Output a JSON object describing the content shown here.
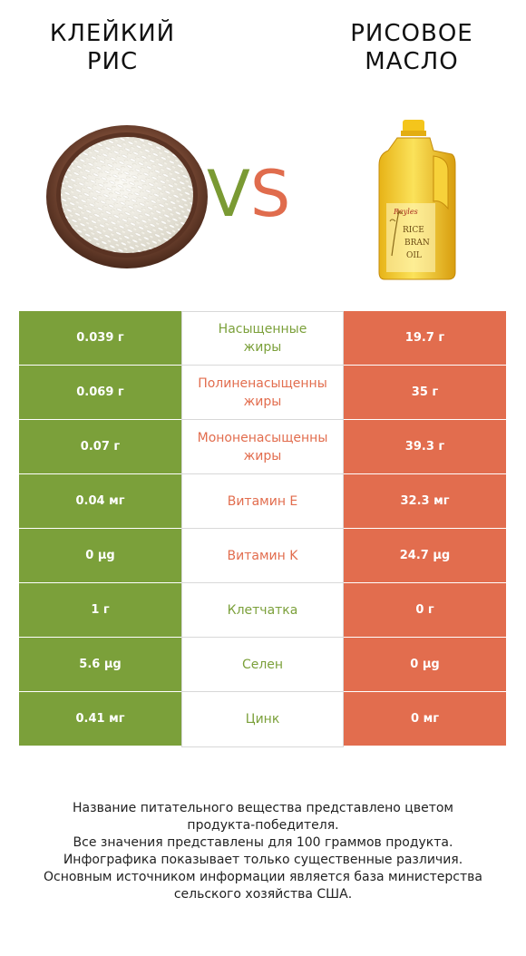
{
  "titles": {
    "left": "КЛЕЙКИЙ\nРИС",
    "right": "РИСОВОЕ\nМАСЛО"
  },
  "vs": {
    "v": "V",
    "s": "S"
  },
  "colors": {
    "green": "#7ba03a",
    "orange": "#e26d4e"
  },
  "bottle_label": [
    "RICE",
    "BRAN",
    "OIL"
  ],
  "bottle_brand": "Reyles",
  "rows": [
    {
      "left": "0.039 г",
      "nutrient": "Насыщенные\nжиры",
      "right": "19.7 г",
      "winner": "green"
    },
    {
      "left": "0.069 г",
      "nutrient": "Полиненасыщенны\nжиры",
      "right": "35 г",
      "winner": "orange"
    },
    {
      "left": "0.07 г",
      "nutrient": "Мононенасыщенны\nжиры",
      "right": "39.3 г",
      "winner": "orange"
    },
    {
      "left": "0.04 мг",
      "nutrient": "Витамин E",
      "right": "32.3 мг",
      "winner": "orange"
    },
    {
      "left": "0 µg",
      "nutrient": "Витамин K",
      "right": "24.7 µg",
      "winner": "orange"
    },
    {
      "left": "1 г",
      "nutrient": "Клетчатка",
      "right": "0 г",
      "winner": "green"
    },
    {
      "left": "5.6 µg",
      "nutrient": "Селен",
      "right": "0 µg",
      "winner": "green"
    },
    {
      "left": "0.41 мг",
      "nutrient": "Цинк",
      "right": "0 мг",
      "winner": "green"
    }
  ],
  "footnote": [
    "Название питательного вещества представлено цветом",
    "продукта-победителя.",
    "Все значения представлены для 100 граммов продукта.",
    "Инфографика показывает только существенные различия.",
    "Основным источником информации является база министерства",
    "сельского хозяйства США."
  ]
}
